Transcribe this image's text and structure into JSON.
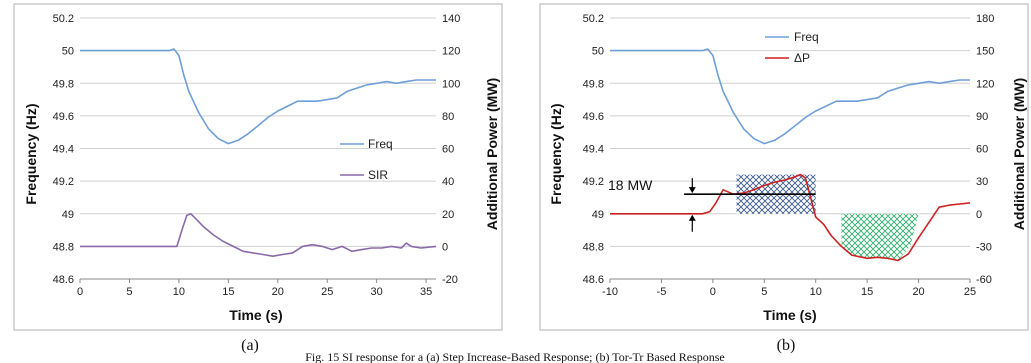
{
  "chart_data": [
    {
      "type": "line",
      "panel_label": "(a)",
      "xlabel": "Time (s)",
      "ylabel": "Frequency (Hz)",
      "y2label": "Additional Power (MW)",
      "xlim": [
        0,
        36
      ],
      "xticks": [
        0,
        5,
        10,
        15,
        20,
        25,
        30,
        35
      ],
      "ylim": [
        48.6,
        50.2
      ],
      "yticks": [
        "50.2",
        "50",
        "49.8",
        "49.6",
        "49.4",
        "49.2",
        "49",
        "48.8",
        "48.6"
      ],
      "y2lim": [
        -20,
        140
      ],
      "y2ticks": [
        "140",
        "120",
        "100",
        "80",
        "60",
        "40",
        "20",
        "0",
        "-20"
      ],
      "grid": "horizontal",
      "legend_position": "center-right",
      "series": [
        {
          "name": "Freq",
          "axis": "left",
          "color": "#6f9fd8",
          "x": [
            0,
            9,
            9.5,
            10,
            10.5,
            11,
            12,
            13,
            14,
            15,
            16,
            17,
            18,
            19,
            20,
            21,
            22,
            23,
            24,
            25,
            26,
            27,
            28,
            29,
            30,
            31,
            32,
            33,
            34,
            35,
            36
          ],
          "y": [
            50.0,
            50.0,
            50.01,
            49.97,
            49.85,
            49.75,
            49.62,
            49.52,
            49.46,
            49.43,
            49.45,
            49.49,
            49.54,
            49.59,
            49.63,
            49.66,
            49.69,
            49.69,
            49.69,
            49.7,
            49.71,
            49.75,
            49.77,
            49.79,
            49.8,
            49.81,
            49.8,
            49.81,
            49.82,
            49.82,
            49.82
          ]
        },
        {
          "name": "SIR",
          "axis": "right",
          "color": "#8b6aaa",
          "x": [
            0,
            9,
            9.8,
            10.3,
            10.8,
            11.2,
            11.7,
            12.5,
            13.5,
            14.5,
            15.5,
            16.5,
            17.5,
            18.5,
            19.5,
            20.5,
            21.5,
            22.5,
            23.5,
            24.5,
            25.5,
            26.5,
            27.5,
            28.5,
            29.5,
            30.5,
            31.5,
            32.5,
            33,
            33.5,
            34.5,
            36
          ],
          "y": [
            0,
            0,
            0,
            10,
            19,
            20,
            17,
            12,
            7,
            3,
            0,
            -3,
            -4,
            -5,
            -6,
            -5,
            -4,
            0,
            1,
            0,
            -2,
            0,
            -3,
            -2,
            -1,
            -1,
            0,
            -1,
            2,
            0,
            -1,
            0
          ]
        }
      ]
    },
    {
      "type": "line",
      "panel_label": "(b)",
      "xlabel": "Time (s)",
      "ylabel": "Frequency (Hz)",
      "y2label": "Additional Power (MW)",
      "xlim": [
        -10,
        25
      ],
      "xticks": [
        -10,
        -5,
        0,
        5,
        10,
        15,
        20,
        25
      ],
      "ylim": [
        48.6,
        50.2
      ],
      "yticks": [
        "50.2",
        "50",
        "49.8",
        "49.6",
        "49.4",
        "49.2",
        "49",
        "48.8",
        "48.6"
      ],
      "y2lim": [
        -60,
        180
      ],
      "y2ticks": [
        "180",
        "150",
        "120",
        "90",
        "60",
        "30",
        "0",
        "-30",
        "-60"
      ],
      "grid": "horizontal",
      "legend_position": "top-center",
      "annotation": "18 MW",
      "series": [
        {
          "name": "Freq",
          "axis": "left",
          "color": "#6f9fd8",
          "x": [
            -10,
            -1,
            -0.5,
            0,
            0.5,
            1,
            2,
            3,
            4,
            5,
            6,
            7,
            8,
            9,
            10,
            11,
            12,
            13,
            14,
            15,
            16,
            17,
            18,
            19,
            20,
            21,
            22,
            23,
            24,
            25
          ],
          "y": [
            50.0,
            50.0,
            50.01,
            49.97,
            49.85,
            49.75,
            49.62,
            49.52,
            49.46,
            49.43,
            49.45,
            49.49,
            49.54,
            49.59,
            49.63,
            49.66,
            49.69,
            49.69,
            49.69,
            49.7,
            49.71,
            49.75,
            49.77,
            49.79,
            49.8,
            49.81,
            49.8,
            49.81,
            49.82,
            49.82
          ]
        },
        {
          "name": "ΔP",
          "axis": "right",
          "color": "#cc2222",
          "x": [
            -10,
            -1,
            -0.3,
            0.3,
            1,
            2,
            3,
            4,
            5,
            6,
            7,
            8,
            8.5,
            9,
            9.5,
            10,
            10.8,
            11.5,
            12.5,
            13.5,
            15,
            16,
            17,
            18,
            19,
            20,
            21,
            22,
            23,
            24,
            25
          ],
          "y": [
            0,
            0,
            2,
            10,
            22,
            18,
            19,
            22,
            26,
            29,
            31,
            34,
            36,
            33,
            15,
            -3,
            -10,
            -20,
            -30,
            -38,
            -41,
            -40,
            -41,
            -43,
            -37,
            -22,
            -8,
            6,
            8,
            9,
            10
          ]
        }
      ]
    }
  ],
  "caption": "Fig. 15 SI response for a (a) Step Increase-Based Response; (b) Tor-Tr Based Response"
}
